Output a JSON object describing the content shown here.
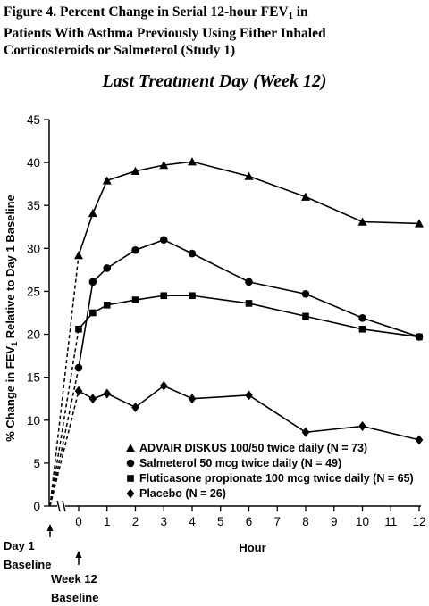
{
  "figure": {
    "caption_line1_pre": "Figure 4. Percent Change in Serial 12-hour FEV",
    "caption_line1_sub": "1",
    "caption_line1_post": " in",
    "caption_line2": "Patients With Asthma Previously Using Either Inhaled",
    "caption_line3": "Corticosteroids or Salmeterol (Study 1)"
  },
  "chart_data": {
    "type": "line",
    "title": "Last Treatment Day (Week 12)",
    "xlabel": "Hour",
    "ylabel_pre": "% Change in FEV",
    "ylabel_sub": "1",
    "ylabel_post": " Relative to Day 1 Baseline",
    "xlim": [
      0,
      12
    ],
    "ylim": [
      0,
      45
    ],
    "x_ticks": [
      "0",
      "1",
      "2",
      "3",
      "4",
      "5",
      "6",
      "7",
      "8",
      "9",
      "10",
      "11",
      "12"
    ],
    "y_ticks": [
      "0",
      "5",
      "10",
      "15",
      "20",
      "25",
      "30",
      "35",
      "40",
      "45"
    ],
    "day1_label": "Day 1",
    "day1_sub": "Baseline",
    "week12_label": "Week 12",
    "week12_sub": "Baseline",
    "day1_baseline_value": 0,
    "legend_position": "bottom-right inside plot",
    "series": [
      {
        "name": "ADVAIR DISKUS 100/50 twice daily (N = 73)",
        "marker": "triangle",
        "x": [
          0,
          0.5,
          1,
          2,
          3,
          4,
          6,
          8,
          10,
          12
        ],
        "y": [
          29.2,
          34.1,
          37.9,
          39.0,
          39.7,
          40.1,
          38.4,
          36.0,
          33.1,
          32.9
        ]
      },
      {
        "name": "Salmeterol 50 mcg twice daily (N = 49)",
        "marker": "circle",
        "x": [
          0,
          0.5,
          1,
          2,
          3,
          4,
          6,
          8,
          10,
          12
        ],
        "y": [
          16.1,
          26.1,
          27.7,
          29.8,
          31.0,
          29.4,
          26.1,
          24.7,
          21.9,
          19.7
        ]
      },
      {
        "name": "Fluticasone propionate 100 mcg twice daily (N = 65)",
        "marker": "square",
        "x": [
          0,
          0.5,
          1,
          2,
          3,
          4,
          6,
          8,
          10,
          12
        ],
        "y": [
          20.6,
          22.5,
          23.4,
          24.0,
          24.5,
          24.5,
          23.6,
          22.1,
          20.6,
          19.7
        ]
      },
      {
        "name": "Placebo (N = 26)",
        "marker": "diamond",
        "x": [
          0,
          0.5,
          1,
          2,
          3,
          4,
          6,
          8,
          10,
          12
        ],
        "y": [
          13.4,
          12.5,
          13.1,
          11.5,
          14.0,
          12.5,
          12.9,
          8.6,
          9.3,
          7.7
        ]
      }
    ]
  }
}
